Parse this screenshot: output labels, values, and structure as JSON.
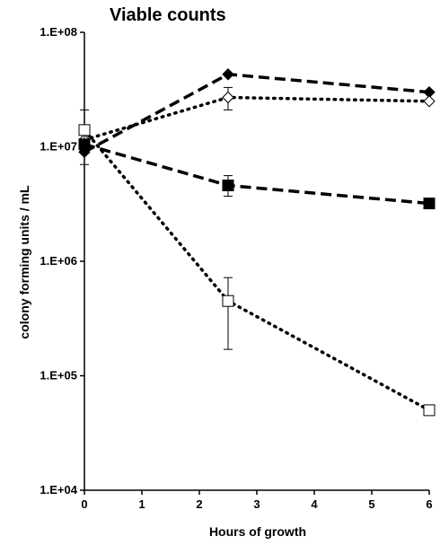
{
  "chart_data": {
    "type": "line",
    "title": "Viable counts",
    "xlabel": "Hours of growth",
    "ylabel": "colony forming units / mL",
    "xlim": [
      0,
      6
    ],
    "ylim": [
      10000,
      100000000
    ],
    "yscale": "log",
    "grid": false,
    "legend": "none",
    "x_ticks": [
      0,
      1,
      2,
      3,
      4,
      5,
      6
    ],
    "y_ticks": [
      10000,
      100000,
      1000000,
      10000000,
      100000000
    ],
    "y_tick_labels": [
      "1.E+04",
      "1.E+05",
      "1.E+06",
      "1.E+07",
      "1.E+08"
    ],
    "series": [
      {
        "marker": "diamond-filled",
        "line": "dashed",
        "color": "#000000",
        "x": [
          0,
          2.5,
          6
        ],
        "y": [
          9000000,
          43000000,
          30000000
        ]
      },
      {
        "marker": "diamond-open",
        "line": "dotted",
        "color": "#000000",
        "x": [
          0,
          2.5,
          6
        ],
        "y": [
          11500000,
          27000000,
          25000000
        ],
        "err_low": [
          null,
          21000000,
          null
        ],
        "err_high": [
          null,
          33000000,
          null
        ]
      },
      {
        "marker": "square-filled",
        "line": "dashed",
        "color": "#000000",
        "x": [
          0,
          2.5,
          6
        ],
        "y": [
          10500000,
          4600000,
          3200000
        ],
        "err_low": [
          null,
          3700000,
          null
        ],
        "err_high": [
          null,
          5600000,
          null
        ]
      },
      {
        "marker": "square-open",
        "line": "dotted",
        "color": "#000000",
        "x": [
          0,
          2.5,
          6
        ],
        "y": [
          14000000,
          450000,
          50000
        ],
        "err_low": [
          7000000,
          170000,
          null
        ],
        "err_high": [
          21000000,
          720000,
          null
        ]
      }
    ]
  }
}
